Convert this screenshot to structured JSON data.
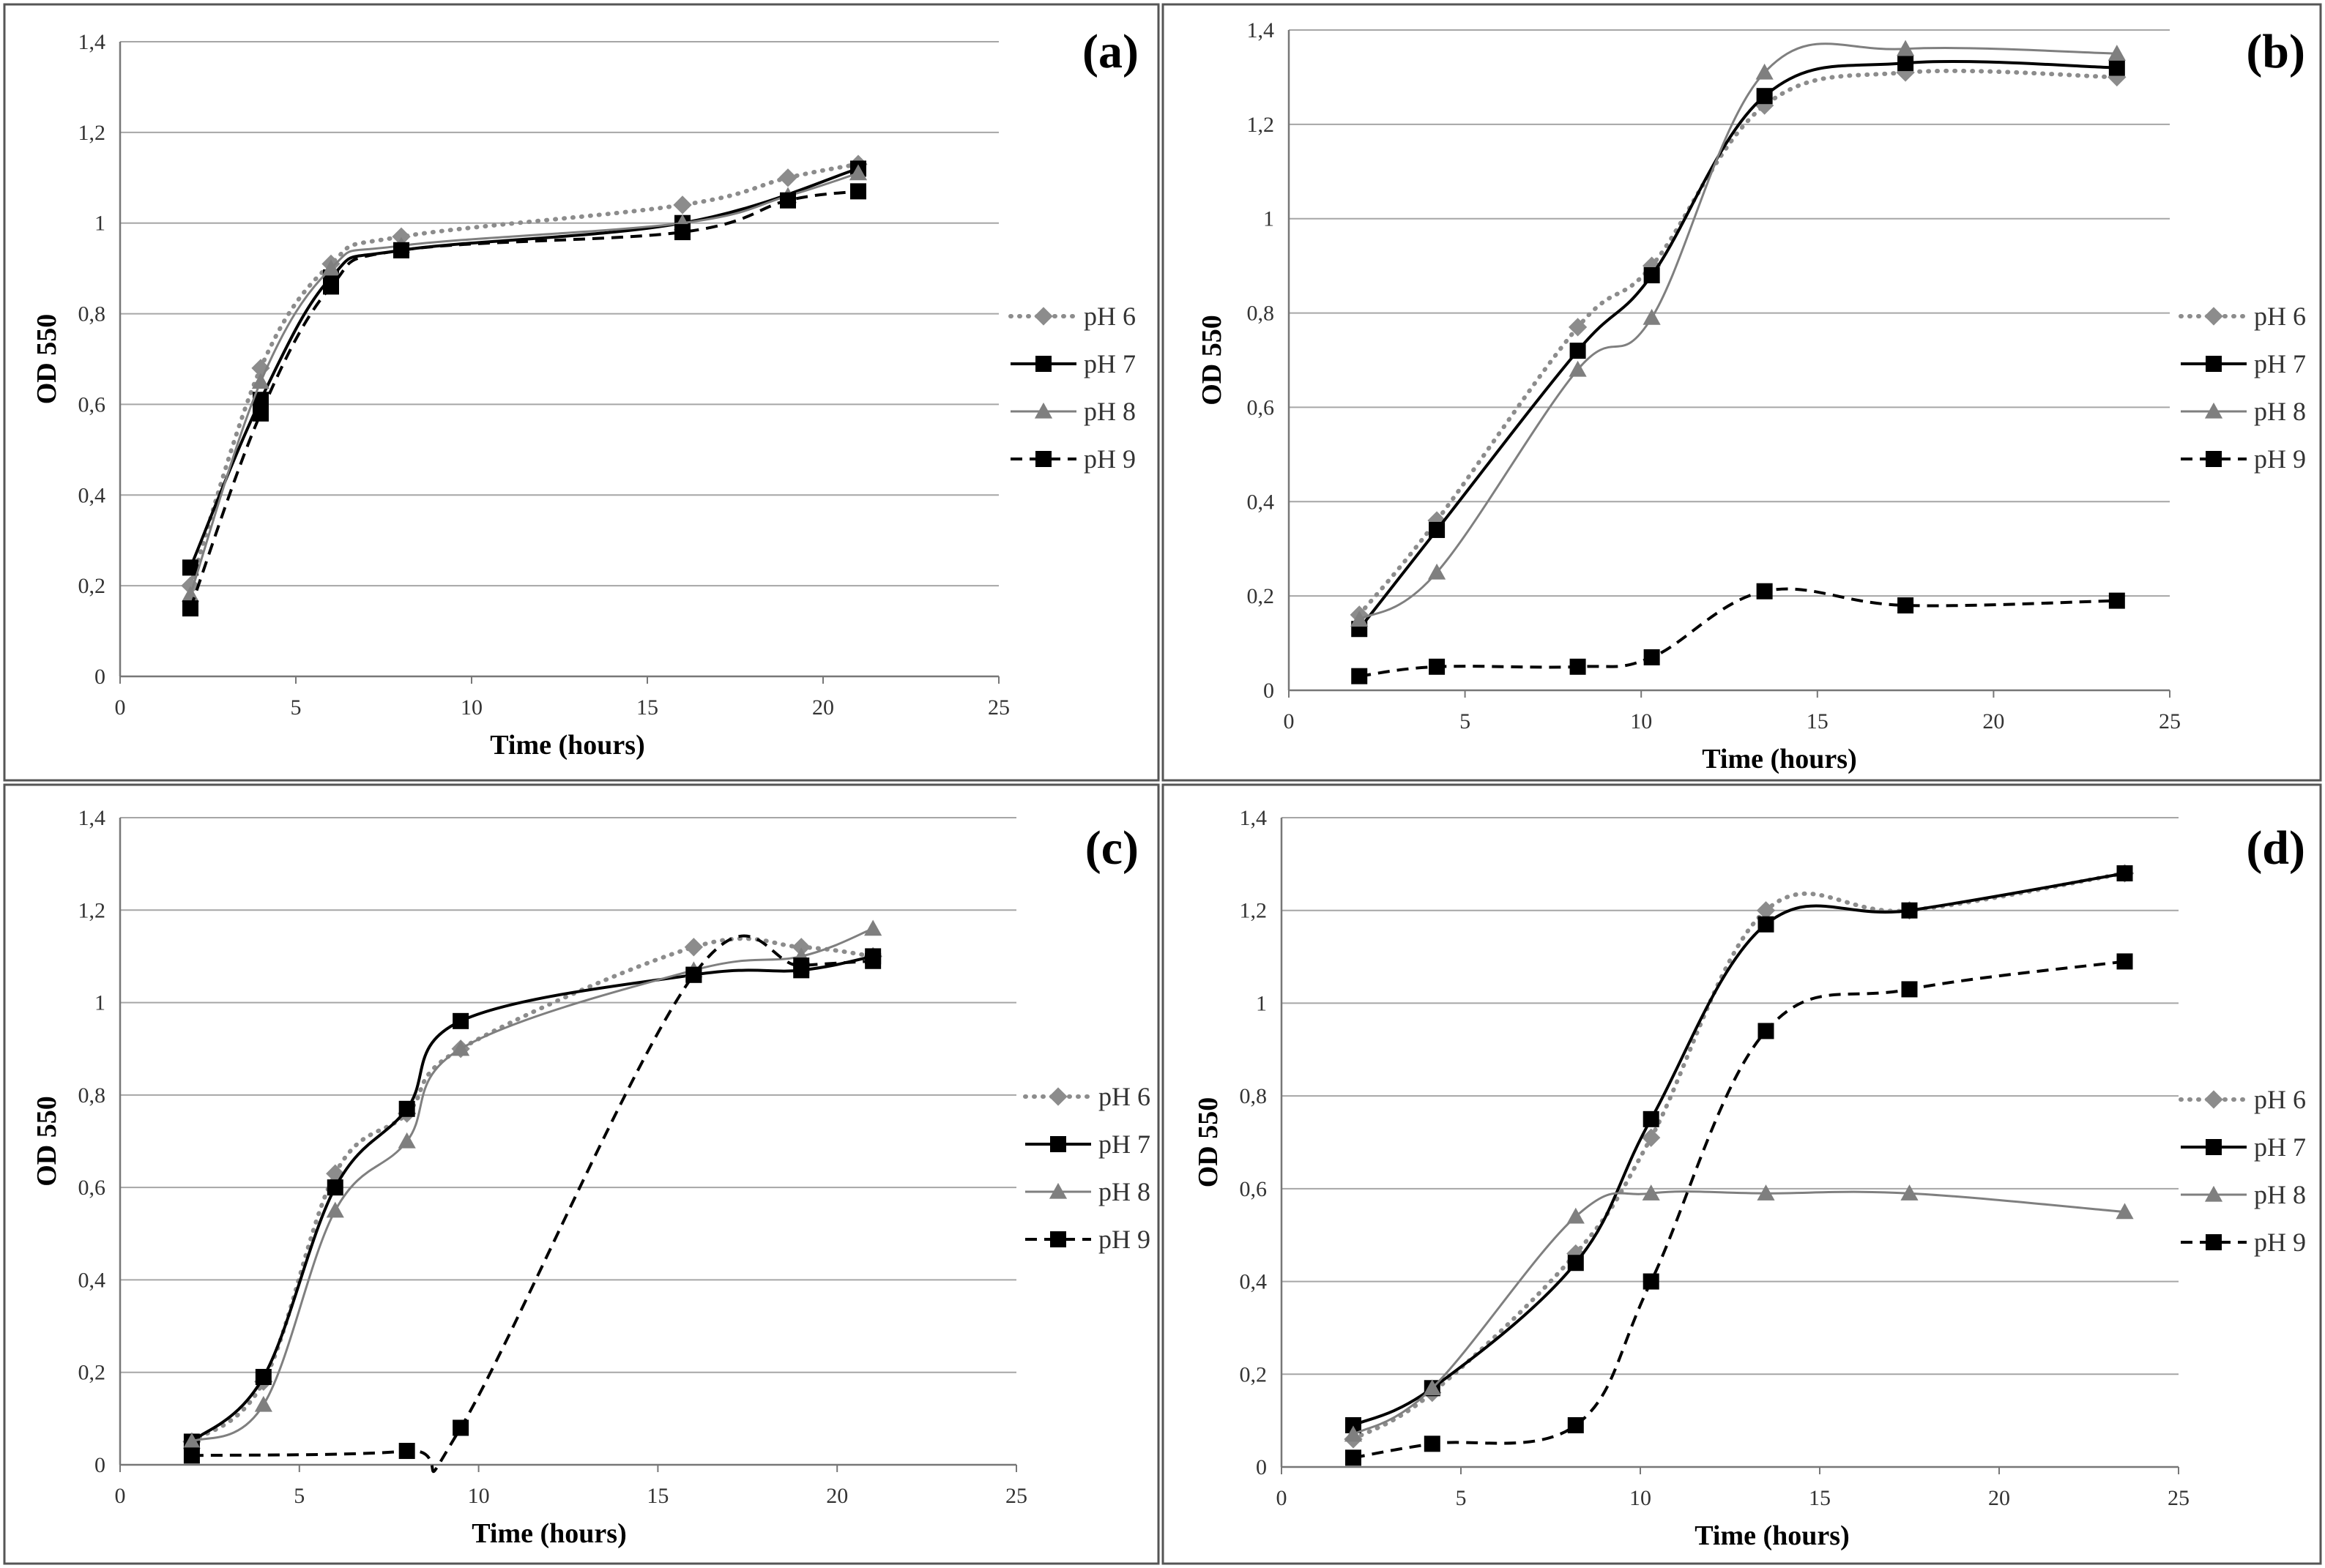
{
  "figure": {
    "panels": [
      {
        "panel_label": "(a)",
        "chart_data": {
          "type": "line",
          "xlabel": "Time (hours)",
          "ylabel": "OD 550",
          "xlim": [
            0,
            25
          ],
          "ylim": [
            0,
            1.4
          ],
          "xticks": [
            "0",
            "5",
            "10",
            "15",
            "20",
            "25"
          ],
          "yticks": [
            "0",
            "0,2",
            "0,4",
            "0,6",
            "0,8",
            "1",
            "1,2",
            "1,4"
          ],
          "grid": "horizontal",
          "legend": "right",
          "series": [
            {
              "name": "pH 6",
              "x": [
                2,
                4,
                6,
                8,
                16,
                19,
                21
              ],
              "y": [
                0.2,
                0.68,
                0.91,
                0.97,
                1.04,
                1.1,
                1.13
              ]
            },
            {
              "name": "pH 7",
              "x": [
                2,
                4,
                6,
                8,
                16,
                21
              ],
              "y": [
                0.24,
                0.61,
                0.88,
                0.94,
                1.0,
                1.12
              ]
            },
            {
              "name": "pH 8",
              "x": [
                2,
                4,
                6,
                8,
                16,
                19,
                21
              ],
              "y": [
                0.18,
                0.65,
                0.9,
                0.95,
                1.0,
                1.06,
                1.11
              ]
            },
            {
              "name": "pH 9",
              "x": [
                2,
                4,
                6,
                8,
                16,
                19,
                21
              ],
              "y": [
                0.15,
                0.58,
                0.86,
                0.94,
                0.98,
                1.05,
                1.07
              ]
            }
          ]
        }
      },
      {
        "panel_label": "(b)",
        "chart_data": {
          "type": "line",
          "xlabel": "Time (hours)",
          "ylabel": "OD 550",
          "xlim": [
            0,
            25
          ],
          "ylim": [
            0,
            1.4
          ],
          "xticks": [
            "0",
            "5",
            "10",
            "15",
            "20",
            "25"
          ],
          "yticks": [
            "0",
            "0,2",
            "0,4",
            "0,6",
            "0,8",
            "1",
            "1,2",
            "1,4"
          ],
          "grid": "horizontal",
          "legend": "right",
          "series": [
            {
              "name": "pH 6",
              "x": [
                2,
                4.2,
                8.2,
                10.3,
                13.5,
                17.5,
                23.5
              ],
              "y": [
                0.16,
                0.36,
                0.77,
                0.9,
                1.24,
                1.31,
                1.3
              ]
            },
            {
              "name": "pH 7",
              "x": [
                2,
                4.2,
                8.2,
                10.3,
                13.5,
                17.5,
                23.5
              ],
              "y": [
                0.13,
                0.34,
                0.72,
                0.88,
                1.26,
                1.33,
                1.32
              ]
            },
            {
              "name": "pH 8",
              "x": [
                2,
                4.2,
                8.2,
                10.3,
                13.5,
                17.5,
                23.5
              ],
              "y": [
                0.15,
                0.25,
                0.68,
                0.79,
                1.31,
                1.36,
                1.35
              ]
            },
            {
              "name": "pH 9",
              "x": [
                2,
                4.2,
                8.2,
                10.3,
                13.5,
                17.5,
                23.5
              ],
              "y": [
                0.03,
                0.05,
                0.05,
                0.07,
                0.21,
                0.18,
                0.19
              ]
            }
          ]
        }
      },
      {
        "panel_label": "(c)",
        "chart_data": {
          "type": "line",
          "xlabel": "Time (hours)",
          "ylabel": "OD 550",
          "xlim": [
            0,
            25
          ],
          "ylim": [
            0,
            1.4
          ],
          "xticks": [
            "0",
            "5",
            "10",
            "15",
            "20",
            "25"
          ],
          "yticks": [
            "0",
            "0,2",
            "0,4",
            "0,6",
            "0,8",
            "1",
            "1,2",
            "1,4"
          ],
          "grid": "horizontal",
          "legend": "right",
          "series": [
            {
              "name": "pH 6",
              "x": [
                2,
                4,
                6,
                8,
                9.5,
                16,
                19,
                21
              ],
              "y": [
                0.05,
                0.18,
                0.63,
                0.76,
                0.9,
                1.12,
                1.12,
                1.1
              ]
            },
            {
              "name": "pH 7",
              "x": [
                2,
                4,
                6,
                8,
                9.5,
                16,
                19,
                21
              ],
              "y": [
                0.05,
                0.19,
                0.6,
                0.77,
                0.96,
                1.06,
                1.07,
                1.1
              ]
            },
            {
              "name": "pH 8",
              "x": [
                2,
                4,
                6,
                8,
                9.5,
                16,
                19,
                21
              ],
              "y": [
                0.05,
                0.13,
                0.55,
                0.7,
                0.9,
                1.07,
                1.1,
                1.16
              ]
            },
            {
              "name": "pH 9",
              "x": [
                2,
                8,
                9.5,
                16,
                19,
                21
              ],
              "y": [
                0.02,
                0.03,
                0.08,
                1.06,
                1.08,
                1.09
              ]
            }
          ]
        }
      },
      {
        "panel_label": "(d)",
        "chart_data": {
          "type": "line",
          "xlabel": "Time (hours)",
          "ylabel": "OD 550",
          "xlim": [
            0,
            25
          ],
          "ylim": [
            0,
            1.4
          ],
          "xticks": [
            "0",
            "5",
            "10",
            "15",
            "20",
            "25"
          ],
          "yticks": [
            "0",
            "0,2",
            "0,4",
            "0,6",
            "0,8",
            "1",
            "1,2",
            "1,4"
          ],
          "grid": "horizontal",
          "legend": "right",
          "series": [
            {
              "name": "pH 6",
              "x": [
                2,
                4.2,
                8.2,
                10.3,
                13.5,
                17.5,
                23.5
              ],
              "y": [
                0.06,
                0.16,
                0.46,
                0.71,
                1.2,
                1.2,
                1.28
              ]
            },
            {
              "name": "pH 7",
              "x": [
                2,
                4.2,
                8.2,
                10.3,
                13.5,
                17.5,
                23.5
              ],
              "y": [
                0.09,
                0.17,
                0.44,
                0.75,
                1.17,
                1.2,
                1.28
              ]
            },
            {
              "name": "pH 8",
              "x": [
                2,
                4.2,
                8.2,
                10.3,
                13.5,
                17.5,
                23.5
              ],
              "y": [
                0.07,
                0.17,
                0.54,
                0.59,
                0.59,
                0.59,
                0.55
              ]
            },
            {
              "name": "pH 9",
              "x": [
                2,
                4.2,
                8.2,
                10.3,
                13.5,
                17.5,
                23.5
              ],
              "y": [
                0.02,
                0.05,
                0.09,
                0.4,
                0.94,
                1.03,
                1.09
              ]
            }
          ]
        }
      }
    ],
    "series_styles": {
      "pH 6": {
        "color": "#8c8c8c",
        "dash": "dotted",
        "marker": "diamond"
      },
      "pH 7": {
        "color": "#000000",
        "dash": "solid",
        "marker": "square"
      },
      "pH 8": {
        "color": "#7f7f7f",
        "dash": "solid",
        "marker": "triangle"
      },
      "pH 9": {
        "color": "#000000",
        "dash": "dashed",
        "marker": "square"
      }
    },
    "colors": {
      "grid": "#a6a6a6",
      "frame": "#555555",
      "divider": "#444444"
    }
  }
}
